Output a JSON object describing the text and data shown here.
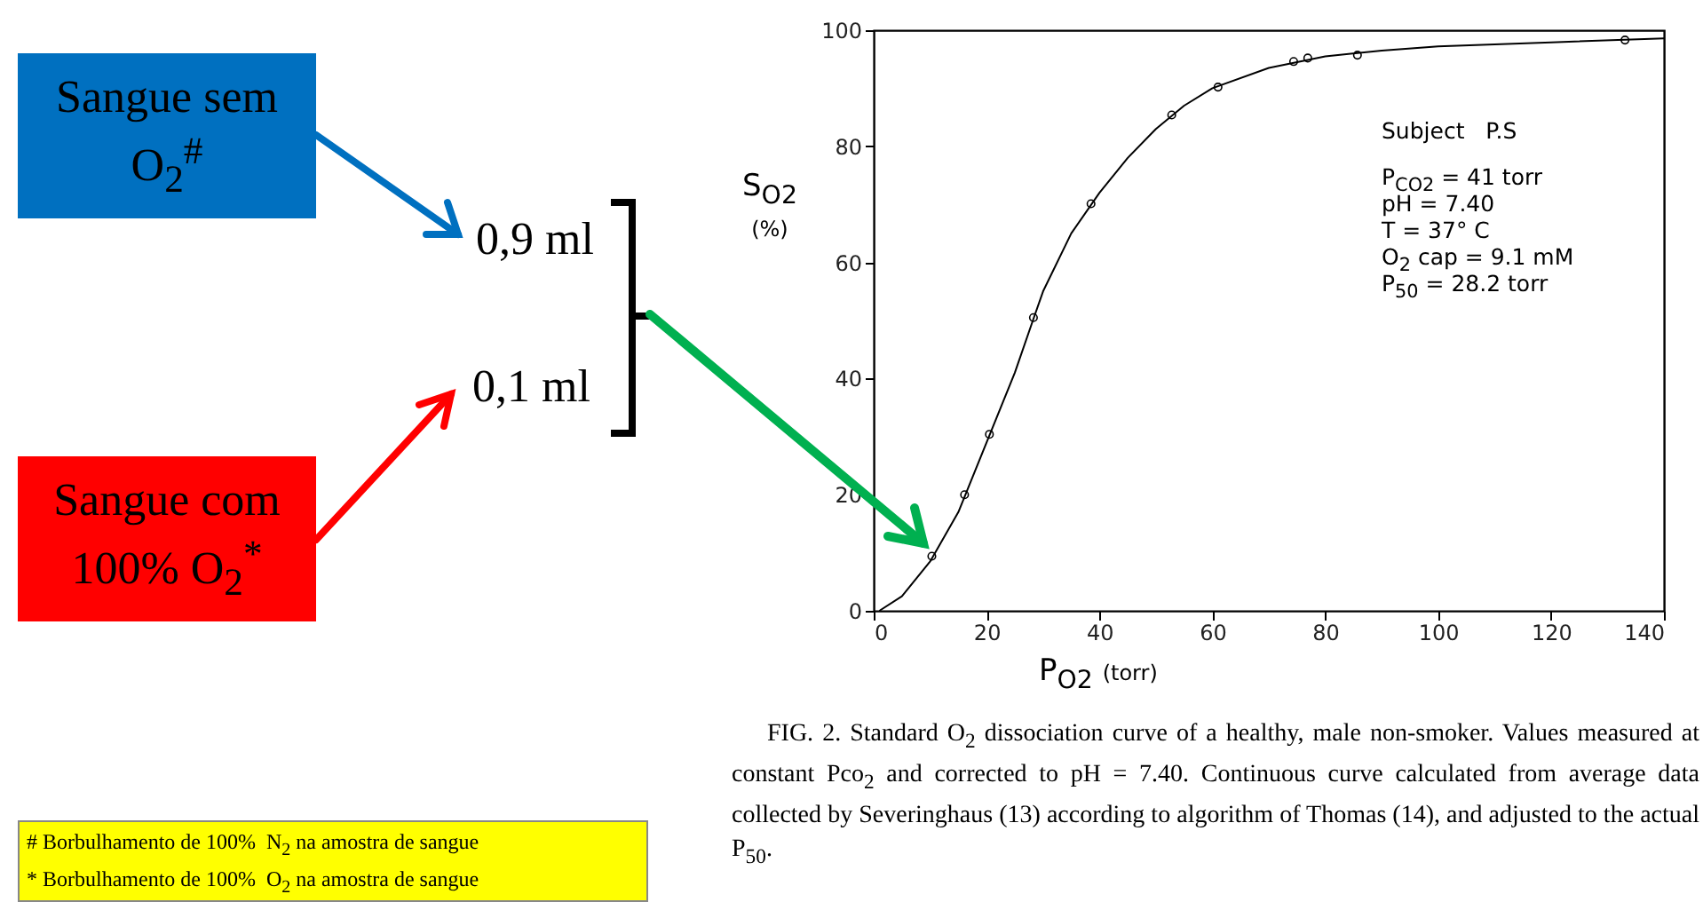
{
  "chart_data": {
    "type": "scatter",
    "xlabel": "P$_{O2}$ (torr)",
    "ylabel": "S$_{O2}$ (%)",
    "xlim": [
      0,
      140
    ],
    "ylim": [
      0,
      100
    ],
    "xticks": [
      0,
      20,
      40,
      60,
      80,
      100,
      120,
      140
    ],
    "yticks": [
      0,
      20,
      40,
      60,
      80,
      100
    ],
    "marker": "circle",
    "series": [
      {
        "type": "line",
        "marker": "none",
        "color": "#000000",
        "x": [
          1,
          5,
          10,
          15,
          20,
          25,
          28.2,
          30,
          35,
          40,
          45,
          50,
          55,
          60,
          70,
          80,
          90,
          100,
          120,
          140
        ],
        "values": [
          0,
          2.5,
          8.5,
          17,
          29,
          41,
          50,
          55,
          65,
          72,
          78,
          83,
          87,
          90,
          93.5,
          95.5,
          96.5,
          97.2,
          97.9,
          98.6
        ]
      },
      {
        "color": "#000000",
        "x": [
          10.3,
          16.1,
          20.5,
          28.3,
          38.5,
          52.8,
          61,
          74.4,
          76.9,
          85.7,
          133.1
        ],
        "values": [
          9.4,
          20,
          30.4,
          50.5,
          70.1,
          85.4,
          90.2,
          94.6,
          95.2,
          95.7,
          98.3
        ]
      }
    ],
    "annotations": [
      "Sangue sem O$_{2}$$^{#}$",
      "Sangue com 100% O$_{2}$$^{*}$",
      "0,9 ml",
      "0,1 ml",
      "# Borbulhamento de 100%  N$_{2}$ na amostra de sangue",
      "* Borbulhamento de 100%  O$_{2}$ na amostra de sangue",
      "Subject   P.S",
      "P$_{CO2}$ = 41 torr",
      "pH = 7.40",
      "T = 37° C",
      "O$_{2}$ cap = 9.1 mM",
      "P$_{50}$ = 28.2 torr",
      "FIG. 2. Standard O$_{2}$ dissociation curve of a healthy, male non-smoker. Values measured at constant Pco$_{2}$ and corrected to pH = 7.40. Continuous curve calculated from average data collected by Severinghaus (13) according to algorithm of Thomas (14), and adjusted to the actual P$_{50}$."
    ]
  }
}
